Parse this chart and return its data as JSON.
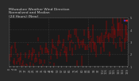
{
  "title_line1": "Milwaukee Weather Wind Direction",
  "title_line2": "Normalized and Median",
  "title_line3": "(24 Hours) (New)",
  "bg_color": "#2a2a2a",
  "plot_bg_color": "#1a1a1a",
  "bar_color": "#cc0000",
  "legend_blue": "#3333cc",
  "legend_red": "#cc2222",
  "ylim": [
    1,
    5
  ],
  "yticks": [
    1,
    2,
    3,
    4,
    5
  ],
  "n_points": 130,
  "seed": 42,
  "grid_color": "#555555",
  "title_color": "#cccccc",
  "title_fontsize": 3.2,
  "tick_fontsize": 2.5,
  "tick_color": "#aaaaaa"
}
